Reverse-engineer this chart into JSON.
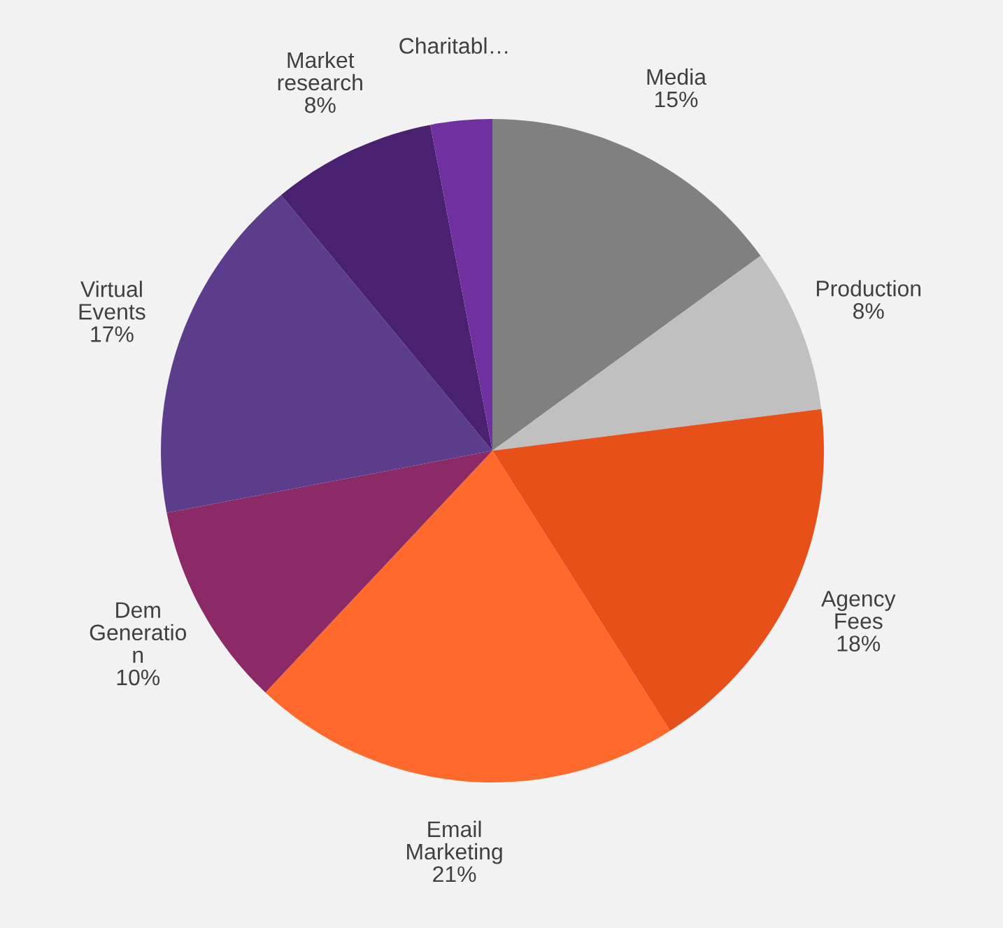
{
  "chart_data": {
    "type": "pie",
    "categories": [
      "Media",
      "Production",
      "Agency\nFees",
      "Email\nMarketing",
      "Dem\nGeneratio\nn",
      "Virtual\nEvents",
      "Market\nresearch",
      "Charitabl…"
    ],
    "values": [
      15,
      8,
      18,
      21,
      10,
      17,
      8,
      3
    ],
    "value_labels": [
      "15%",
      "8%",
      "18%",
      "21%",
      "10%",
      "17%",
      "8%",
      null
    ],
    "colors": [
      "#808080",
      "#c0c0c0",
      "#e8501a",
      "#ff6a2c",
      "#8b2a66",
      "#5c3d8c",
      "#4a2070",
      "#7030a0"
    ],
    "legend": false
  }
}
